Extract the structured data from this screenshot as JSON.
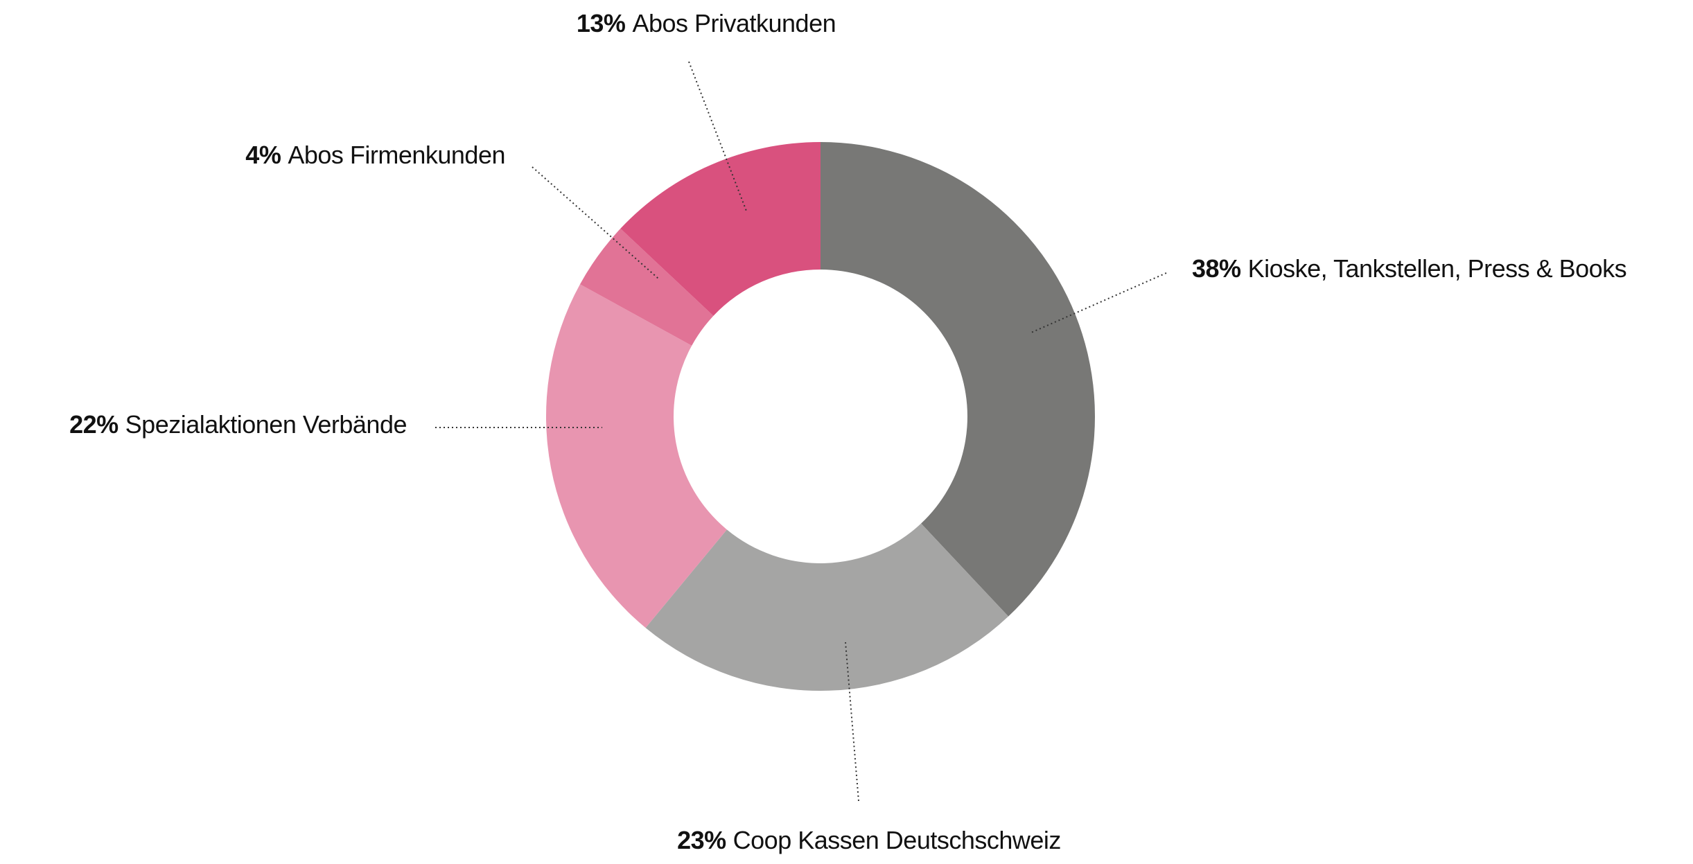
{
  "chart_data": {
    "type": "donut",
    "categories": [
      "Kioske, Tankstellen, Press & Books",
      "Coop Kassen Deutschschweiz",
      "Spezialaktionen Verbände",
      "Abos Firmenkunden",
      "Abos Privatkunden"
    ],
    "values": [
      38,
      23,
      22,
      4,
      13
    ],
    "value_labels": [
      "38%",
      "23%",
      "22%",
      "4%",
      "13%"
    ],
    "colors": [
      "#787876",
      "#a5a5a4",
      "#e895b0",
      "#e17396",
      "#d9517e"
    ]
  }
}
